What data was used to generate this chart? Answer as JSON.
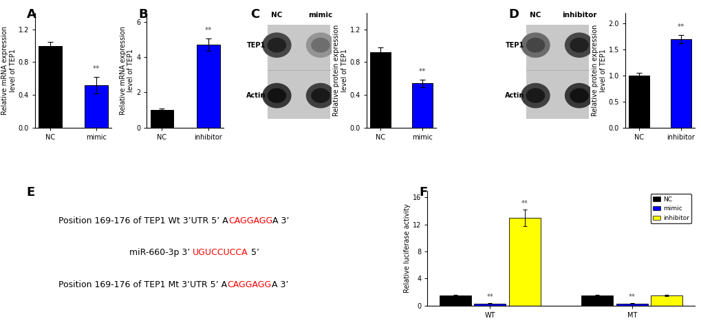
{
  "panel_A": {
    "categories": [
      "NC",
      "mimic"
    ],
    "values": [
      1.0,
      0.52
    ],
    "errors": [
      0.05,
      0.1
    ],
    "colors": [
      "#000000",
      "#0000FF"
    ],
    "ylabel": "Relative mRNA expression\nlevel of TEP1",
    "ylim": [
      0,
      1.4
    ],
    "yticks": [
      0.0,
      0.4,
      0.8,
      1.2
    ],
    "sig_label": "**",
    "sig_bar_idx": 1
  },
  "panel_B": {
    "categories": [
      "NC",
      "inhibitor"
    ],
    "values": [
      1.0,
      4.7
    ],
    "errors": [
      0.08,
      0.35
    ],
    "colors": [
      "#000000",
      "#0000FF"
    ],
    "ylabel": "Relative mRNA expression\nlevel of TEP1",
    "ylim": [
      0,
      6.5
    ],
    "yticks": [
      0,
      2,
      4,
      6
    ],
    "sig_label": "**",
    "sig_bar_idx": 1
  },
  "panel_C_bar": {
    "categories": [
      "NC",
      "mimic"
    ],
    "values": [
      0.92,
      0.54
    ],
    "errors": [
      0.06,
      0.05
    ],
    "colors": [
      "#000000",
      "#0000FF"
    ],
    "ylabel": "Relative protein expression\nlevel of TEP1",
    "ylim": [
      0,
      1.4
    ],
    "yticks": [
      0.0,
      0.4,
      0.8,
      1.2
    ],
    "sig_label": "**",
    "sig_bar_idx": 1
  },
  "panel_D_bar": {
    "categories": [
      "NC",
      "inhibitor"
    ],
    "values": [
      1.0,
      1.7
    ],
    "errors": [
      0.05,
      0.08
    ],
    "colors": [
      "#000000",
      "#0000FF"
    ],
    "ylabel": "Relative protein expression\nlevel of TEP1",
    "ylim": [
      0,
      2.2
    ],
    "yticks": [
      0.0,
      0.5,
      1.0,
      1.5,
      2.0
    ],
    "sig_label": "**",
    "sig_bar_idx": 1
  },
  "panel_E": {
    "lines": [
      {
        "parts": [
          {
            "text": "Position 169-176 of TEP1 Wt 3’UTR 5’ A",
            "color": "black"
          },
          {
            "text": "CAGGAGG",
            "color": "red"
          },
          {
            "text": "A 3’",
            "color": "black"
          }
        ],
        "indent": 0.08
      },
      {
        "parts": [
          {
            "text": "miR-660-3p 3’ ",
            "color": "black"
          },
          {
            "text": "UGUCCUCCA",
            "color": "red"
          },
          {
            "text": " 5’",
            "color": "black"
          }
        ],
        "indent": 0.32
      },
      {
        "parts": [
          {
            "text": "Position 169-176 of TEP1 Mt 3’UTR 5’ A",
            "color": "black"
          },
          {
            "text": "CAGGAGG",
            "color": "red"
          },
          {
            "text": "A 3’",
            "color": "black"
          }
        ],
        "indent": 0.08
      }
    ]
  },
  "panel_F": {
    "groups": [
      "WT",
      "MT"
    ],
    "subgroups": [
      "NC",
      "mimic",
      "inhibitor"
    ],
    "values": {
      "WT": [
        1.5,
        0.3,
        13.0
      ],
      "MT": [
        1.5,
        0.3,
        1.5
      ]
    },
    "errors": {
      "WT": [
        0.12,
        0.03,
        1.2
      ],
      "MT": [
        0.1,
        0.03,
        0.1
      ]
    },
    "colors": [
      "#000000",
      "#0000FF",
      "#FFFF00"
    ],
    "ylabel": "Relative luciferase activity",
    "ylim": [
      0,
      17
    ],
    "yticks": [
      0,
      4,
      8,
      12,
      16
    ],
    "sig_labels": {
      "WT_NC": "",
      "WT_mimic": "**",
      "WT_inhibitor": "**",
      "MT_NC": "",
      "MT_mimic": "**",
      "MT_inhibitor": ""
    },
    "legend_labels": [
      "NC",
      "mimic",
      "inhibitor"
    ],
    "group_centers": [
      0.45,
      1.35
    ]
  },
  "background_color": "#FFFFFF",
  "label_fontsize": 13,
  "axis_fontsize": 7,
  "tick_fontsize": 7,
  "bar_width": 0.5
}
